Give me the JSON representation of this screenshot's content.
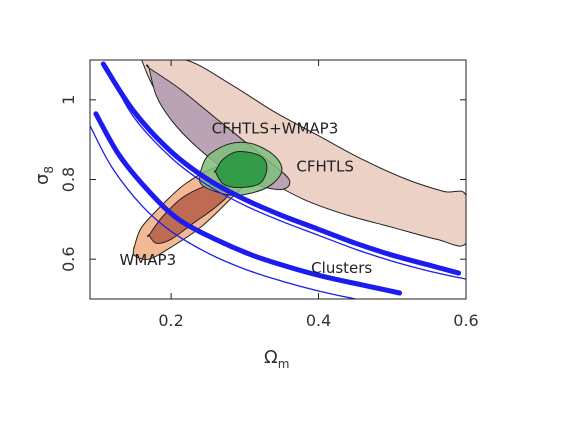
{
  "chart_data": {
    "type": "contour",
    "title": "",
    "xlabel": "Ω",
    "xlabel_sub": "m",
    "ylabel": "σ",
    "ylabel_sub": "8",
    "xlim": [
      0.09,
      0.6
    ],
    "ylim": [
      0.5,
      1.1
    ],
    "x_ticks": [
      0.2,
      0.4,
      0.6
    ],
    "x_tick_labels": [
      "0.2",
      "0.4",
      "0.6"
    ],
    "y_ticks": [
      0.6,
      0.8,
      1.0
    ],
    "y_tick_labels": [
      "0.6",
      "0.8",
      "1"
    ],
    "grid": false,
    "colors": {
      "cfhtls_outer": "#ecd1c6",
      "cfhtls_inner": "#b9a3b5",
      "wmap3_outer": "#f3b188",
      "wmap3_inner": "#b9624a",
      "joint_outer": "#7fbe7a",
      "joint_inner": "#2e9a45",
      "clusters": "#1c1cf0",
      "contour_stroke": "#222222"
    },
    "regions": [
      {
        "id": "cfhtls-outer",
        "label": "CFHTLS",
        "level": "outer",
        "boundary": [
          [
            0.16,
            1.1
          ],
          [
            0.22,
            1.1
          ],
          [
            0.28,
            1.04
          ],
          [
            0.34,
            0.97
          ],
          [
            0.4,
            0.91
          ],
          [
            0.46,
            0.85
          ],
          [
            0.52,
            0.8
          ],
          [
            0.57,
            0.77
          ],
          [
            0.6,
            0.76
          ],
          [
            0.6,
            0.64
          ],
          [
            0.56,
            0.65
          ],
          [
            0.5,
            0.68
          ],
          [
            0.44,
            0.71
          ],
          [
            0.38,
            0.75
          ],
          [
            0.32,
            0.81
          ],
          [
            0.27,
            0.87
          ],
          [
            0.22,
            0.94
          ],
          [
            0.18,
            1.02
          ],
          [
            0.16,
            1.1
          ]
        ]
      },
      {
        "id": "cfhtls-inner",
        "label": "",
        "level": "inner",
        "boundary": [
          [
            0.17,
            1.08
          ],
          [
            0.21,
            1.03
          ],
          [
            0.25,
            0.97
          ],
          [
            0.29,
            0.91
          ],
          [
            0.33,
            0.85
          ],
          [
            0.36,
            0.8
          ],
          [
            0.35,
            0.775
          ],
          [
            0.31,
            0.79
          ],
          [
            0.27,
            0.83
          ],
          [
            0.23,
            0.89
          ],
          [
            0.2,
            0.95
          ],
          [
            0.18,
            1.01
          ],
          [
            0.17,
            1.08
          ]
        ]
      },
      {
        "id": "wmap3-outer",
        "label": "WMAP3",
        "level": "outer",
        "boundary": [
          [
            0.15,
            0.63
          ],
          [
            0.16,
            0.68
          ],
          [
            0.19,
            0.74
          ],
          [
            0.22,
            0.79
          ],
          [
            0.26,
            0.83
          ],
          [
            0.3,
            0.84
          ],
          [
            0.31,
            0.81
          ],
          [
            0.28,
            0.75
          ],
          [
            0.24,
            0.68
          ],
          [
            0.2,
            0.63
          ],
          [
            0.17,
            0.6
          ],
          [
            0.15,
            0.61
          ],
          [
            0.15,
            0.63
          ]
        ]
      },
      {
        "id": "wmap3-inner",
        "label": "",
        "level": "inner",
        "boundary": [
          [
            0.17,
            0.66
          ],
          [
            0.19,
            0.71
          ],
          [
            0.22,
            0.76
          ],
          [
            0.26,
            0.79
          ],
          [
            0.28,
            0.77
          ],
          [
            0.26,
            0.73
          ],
          [
            0.23,
            0.69
          ],
          [
            0.2,
            0.65
          ],
          [
            0.18,
            0.64
          ],
          [
            0.17,
            0.66
          ]
        ]
      },
      {
        "id": "joint-outer",
        "label": "CFHTLS+WMAP3",
        "level": "outer",
        "boundary": [
          [
            0.24,
            0.82
          ],
          [
            0.25,
            0.86
          ],
          [
            0.28,
            0.89
          ],
          [
            0.31,
            0.89
          ],
          [
            0.34,
            0.86
          ],
          [
            0.35,
            0.82
          ],
          [
            0.33,
            0.78
          ],
          [
            0.29,
            0.76
          ],
          [
            0.26,
            0.77
          ],
          [
            0.24,
            0.79
          ],
          [
            0.24,
            0.82
          ]
        ]
      },
      {
        "id": "joint-inner",
        "label": "",
        "level": "inner",
        "boundary": [
          [
            0.26,
            0.82
          ],
          [
            0.27,
            0.85
          ],
          [
            0.29,
            0.87
          ],
          [
            0.32,
            0.86
          ],
          [
            0.33,
            0.83
          ],
          [
            0.32,
            0.79
          ],
          [
            0.29,
            0.78
          ],
          [
            0.27,
            0.79
          ],
          [
            0.26,
            0.82
          ]
        ]
      }
    ],
    "curves": [
      {
        "id": "clusters-upper-thick",
        "label": "",
        "width": "thick",
        "points": [
          [
            0.108,
            1.09
          ],
          [
            0.15,
            0.97
          ],
          [
            0.2,
            0.87
          ],
          [
            0.25,
            0.8
          ],
          [
            0.3,
            0.75
          ],
          [
            0.35,
            0.71
          ],
          [
            0.4,
            0.675
          ],
          [
            0.45,
            0.64
          ],
          [
            0.5,
            0.61
          ],
          [
            0.55,
            0.585
          ],
          [
            0.59,
            0.565
          ]
        ]
      },
      {
        "id": "clusters-upper-thin",
        "label": "",
        "width": "thin",
        "points": [
          [
            0.115,
            1.07
          ],
          [
            0.15,
            0.955
          ],
          [
            0.2,
            0.855
          ],
          [
            0.25,
            0.785
          ],
          [
            0.3,
            0.735
          ],
          [
            0.35,
            0.695
          ],
          [
            0.4,
            0.66
          ],
          [
            0.45,
            0.625
          ],
          [
            0.5,
            0.595
          ],
          [
            0.55,
            0.57
          ],
          [
            0.6,
            0.55
          ]
        ]
      },
      {
        "id": "clusters-lower-thick",
        "label": "Clusters",
        "width": "thick",
        "points": [
          [
            0.098,
            0.965
          ],
          [
            0.13,
            0.86
          ],
          [
            0.17,
            0.77
          ],
          [
            0.21,
            0.7
          ],
          [
            0.26,
            0.65
          ],
          [
            0.31,
            0.61
          ],
          [
            0.36,
            0.58
          ],
          [
            0.41,
            0.555
          ],
          [
            0.46,
            0.535
          ],
          [
            0.51,
            0.515
          ]
        ]
      },
      {
        "id": "clusters-lower-thin",
        "label": "",
        "width": "thin",
        "points": [
          [
            0.09,
            0.935
          ],
          [
            0.12,
            0.83
          ],
          [
            0.16,
            0.735
          ],
          [
            0.2,
            0.67
          ],
          [
            0.25,
            0.615
          ],
          [
            0.3,
            0.575
          ],
          [
            0.35,
            0.545
          ],
          [
            0.4,
            0.52
          ],
          [
            0.45,
            0.5
          ]
        ]
      }
    ],
    "annotations": [
      {
        "id": "label-joint",
        "text": "CFHTLS+WMAP3",
        "x": 0.255,
        "y": 0.915
      },
      {
        "id": "label-cfhtls",
        "text": "CFHTLS",
        "x": 0.37,
        "y": 0.82
      },
      {
        "id": "label-wmap3",
        "text": "WMAP3",
        "x": 0.13,
        "y": 0.585
      },
      {
        "id": "label-clusters",
        "text": "Clusters",
        "x": 0.39,
        "y": 0.565
      }
    ]
  }
}
